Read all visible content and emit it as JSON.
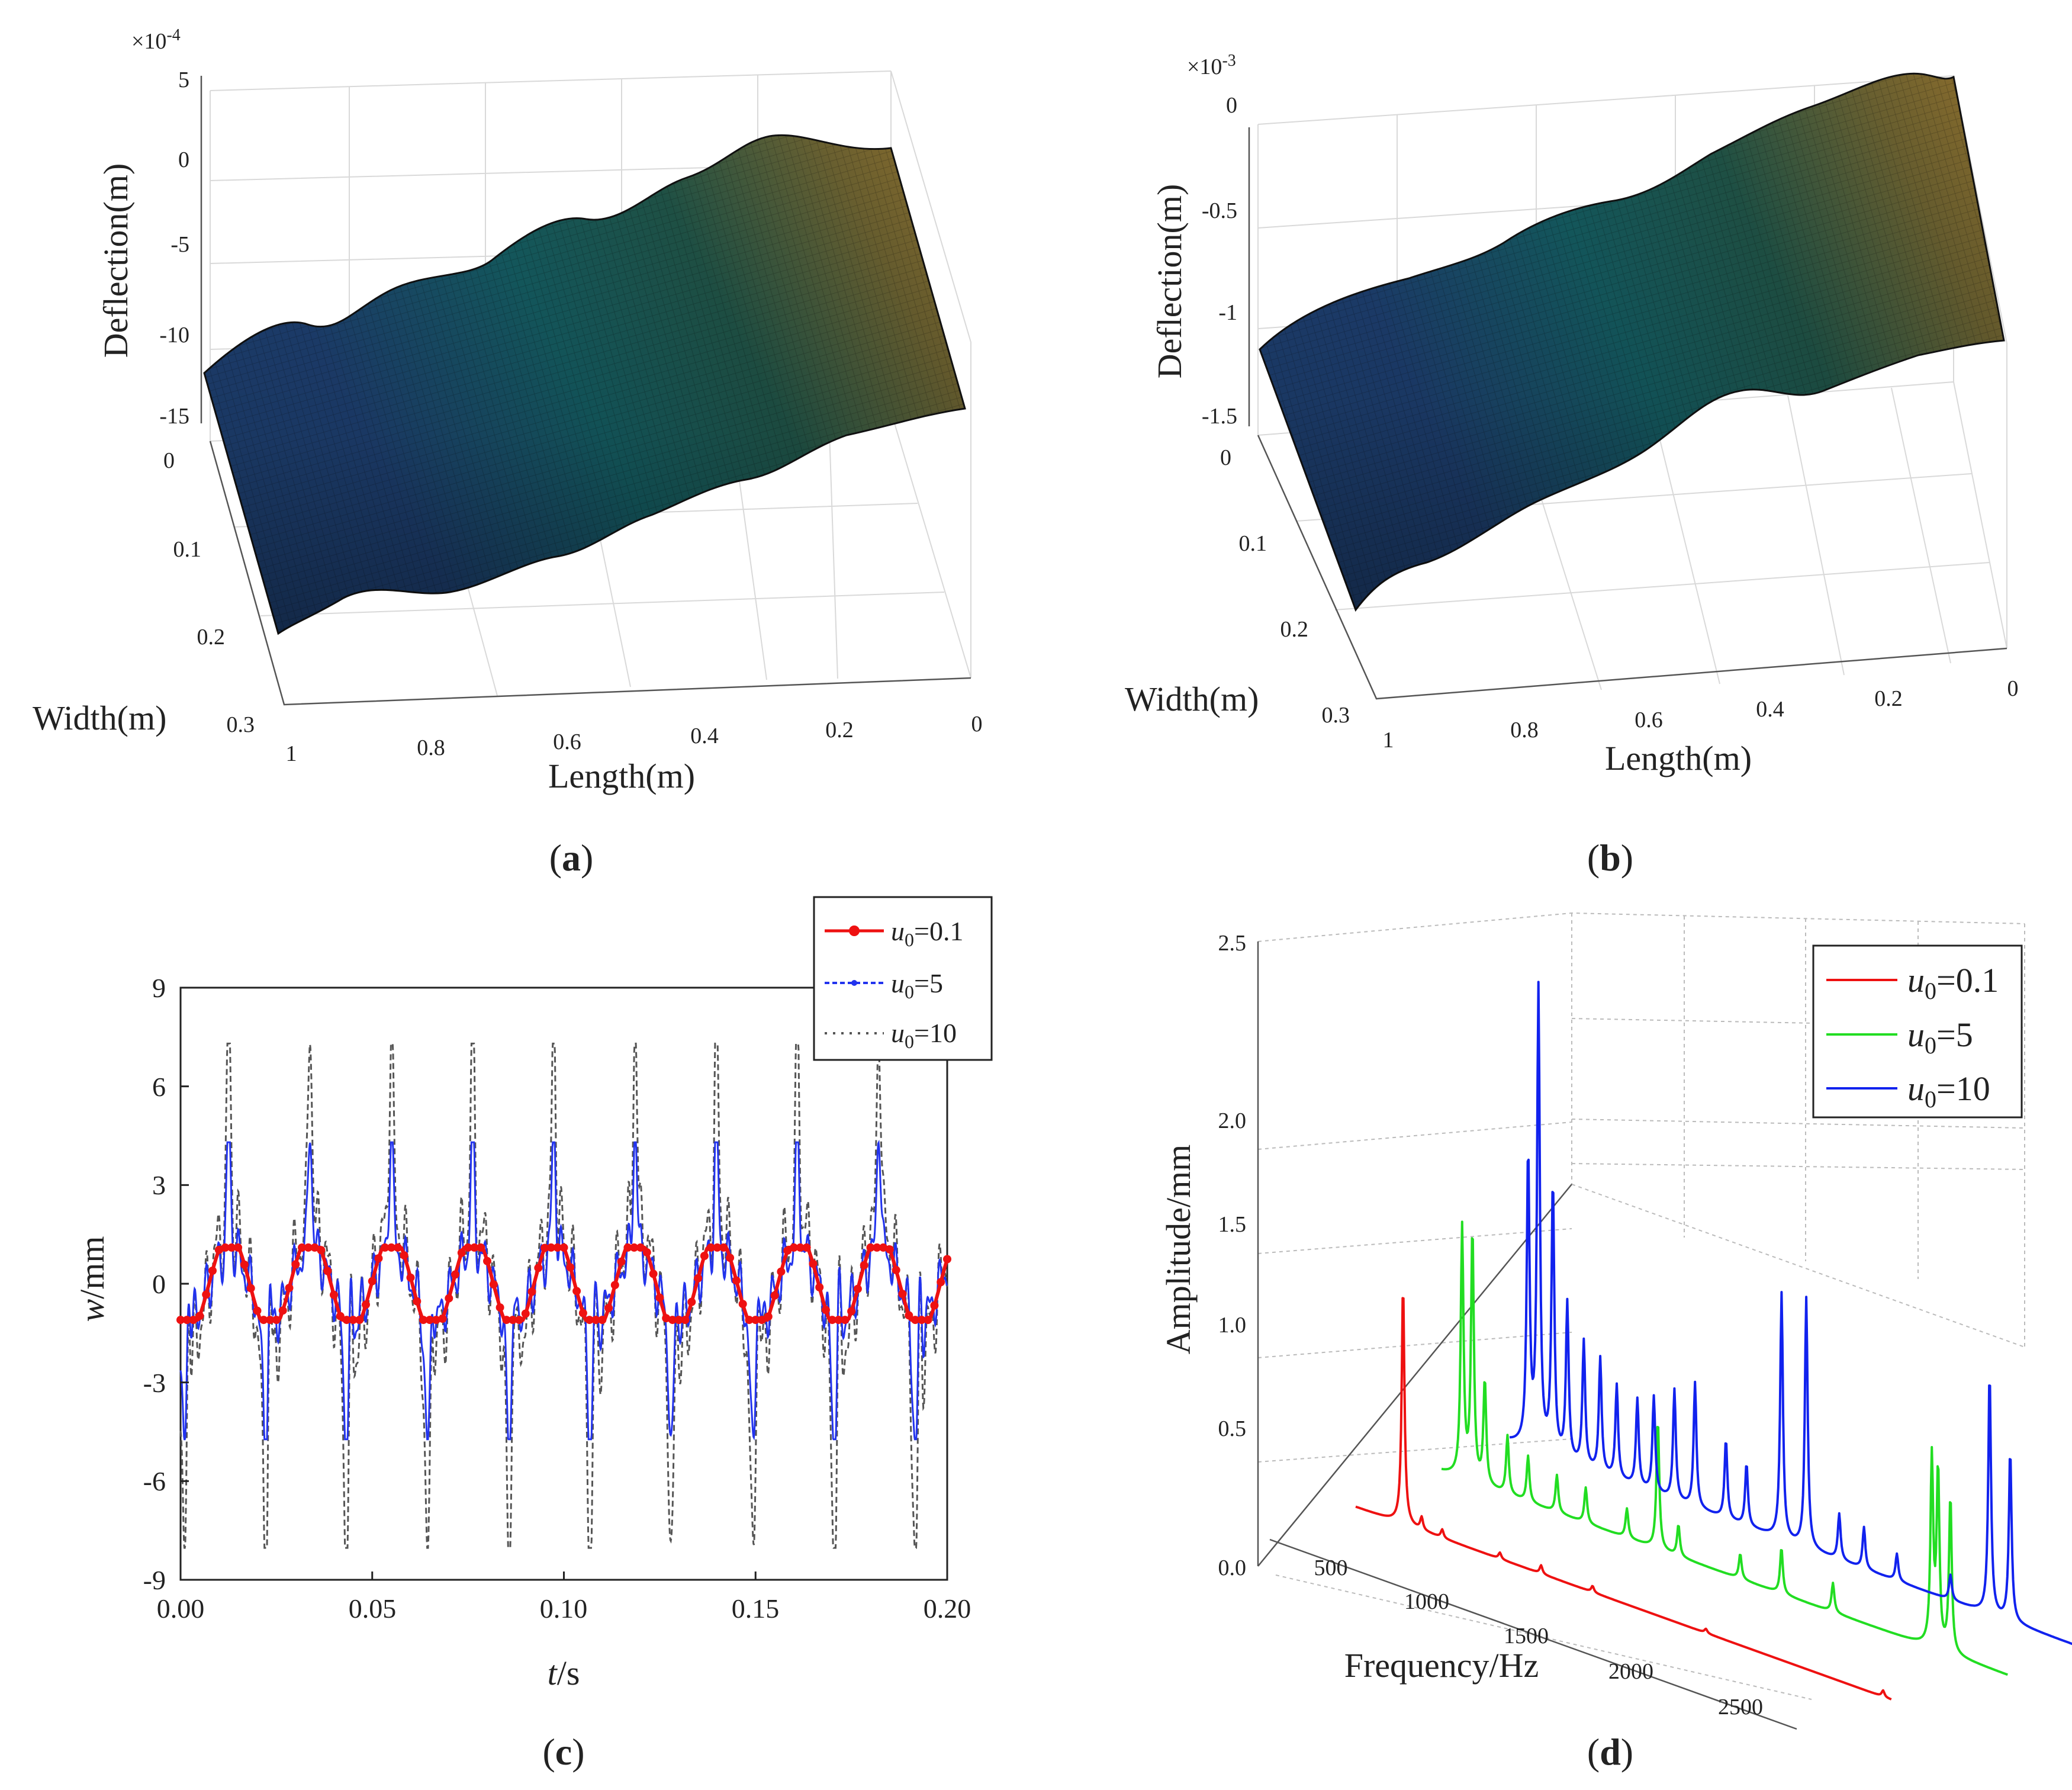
{
  "panels": {
    "a": {
      "label_open": "(",
      "label_letter": "a",
      "label_close": ")",
      "multiplier_prefix": "×10",
      "multiplier_exp": "-4",
      "zlabel": "Deflection(m)",
      "xlabel": "Length(m)",
      "ylabel": "Width(m)",
      "zticks": [
        "5",
        "0",
        "-5",
        "-10",
        "-15"
      ],
      "xticks": [
        "1",
        "0.8",
        "0.6",
        "0.4",
        "0.2",
        "0"
      ],
      "yticks": [
        "0",
        "0.1",
        "0.2",
        "0.3"
      ]
    },
    "b": {
      "label_open": "(",
      "label_letter": "b",
      "label_close": ")",
      "multiplier_prefix": "×10",
      "multiplier_exp": "-3",
      "zlabel": "Deflection(m)",
      "xlabel": "Length(m)",
      "ylabel": "Width(m)",
      "zticks": [
        "0",
        "-0.5",
        "-1",
        "-1.5"
      ],
      "xticks": [
        "1",
        "0.8",
        "0.6",
        "0.4",
        "0.2",
        "0"
      ],
      "yticks": [
        "0",
        "0.1",
        "0.2",
        "0.3"
      ]
    },
    "c": {
      "label_open": "(",
      "label_letter": "c",
      "label_close": ")"
    },
    "d": {
      "label_open": "(",
      "label_letter": "d",
      "label_close": ")"
    }
  },
  "chart_data": [
    {
      "id": "a",
      "type": "surface",
      "zlabel": "Deflection(m)",
      "xlabel": "Length(m)",
      "ylabel": "Width(m)",
      "zlim": [
        -15,
        5
      ],
      "z_scale": "×10^-4",
      "xlim": [
        0,
        1
      ],
      "ylim": [
        0,
        0.3
      ],
      "description": "Deflection surface rising from about -11e-4 at Length=1 to about 0 at Length=0 with sinusoidal ripples along length"
    },
    {
      "id": "b",
      "type": "surface",
      "zlabel": "Deflection(m)",
      "xlabel": "Length(m)",
      "ylabel": "Width(m)",
      "zlim": [
        -1.5,
        0
      ],
      "z_scale": "×10^-3",
      "xlim": [
        0,
        1
      ],
      "ylim": [
        0,
        0.3
      ]
    },
    {
      "id": "c",
      "type": "line",
      "xlabel_italic": "t",
      "xlabel_rest": "/s",
      "ylabel_italic": "w",
      "ylabel_rest": "/mm",
      "xlim": [
        0,
        0.2
      ],
      "ylim": [
        -9,
        9
      ],
      "xticks": [
        "0.00",
        "0.05",
        "0.10",
        "0.15",
        "0.20"
      ],
      "yticks": [
        "9",
        "6",
        "3",
        "0",
        "-3",
        "-6",
        "-9"
      ],
      "period_s": 0.0212,
      "series": [
        {
          "name": "u0=0.1",
          "sym": "u",
          "sub": "0",
          "val": "=0.1",
          "color": "#ee1111",
          "amplitude": 1.1,
          "range": [
            -1.1,
            1.1
          ]
        },
        {
          "name": "u0=5",
          "sym": "u",
          "sub": "0",
          "val": "=5",
          "color": "#2233ee",
          "amplitude": 4.3,
          "range": [
            -4.5,
            4.3
          ]
        },
        {
          "name": "u0=10",
          "sym": "u",
          "sub": "0",
          "val": "=10",
          "color": "#555555",
          "amplitude": 7.3,
          "range": [
            -8.1,
            7.3
          ]
        }
      ]
    },
    {
      "id": "d",
      "type": "line3d",
      "xlabel": "Frequency/Hz",
      "ylabel": "Amplitude/mm",
      "zlim": [
        0,
        2.5
      ],
      "zticks": [
        "0.0",
        "0.5",
        "1.0",
        "1.5",
        "2.0",
        "2.5"
      ],
      "xticks": [
        "500",
        "1000",
        "1500",
        "2000",
        "2500"
      ],
      "xlim": [
        250,
        2750
      ],
      "series": [
        {
          "name": "u0=0.1",
          "sym": "u",
          "sub": "0",
          "val": "=0.1",
          "color": "#ee1111",
          "peaks": [
            [
              230,
              1.15
            ],
            [
              320,
              0.06
            ],
            [
              420,
              0.04
            ],
            [
              700,
              0.03
            ],
            [
              900,
              0.04
            ],
            [
              1150,
              0.03
            ],
            [
              1700,
              0.02
            ],
            [
              2560,
              0.03
            ]
          ]
        },
        {
          "name": "u0=5",
          "sym": "u",
          "sub": "0",
          "val": "=5",
          "color": "#22dd22",
          "peaks": [
            [
              100,
              1.2
            ],
            [
              150,
              1.2
            ],
            [
              210,
              0.5
            ],
            [
              320,
              0.28
            ],
            [
              420,
              0.22
            ],
            [
              560,
              0.18
            ],
            [
              700,
              0.17
            ],
            [
              900,
              0.14
            ],
            [
              1050,
              0.62
            ],
            [
              1150,
              0.15
            ],
            [
              1450,
              0.12
            ],
            [
              1650,
              0.22
            ],
            [
              1900,
              0.14
            ],
            [
              2380,
              0.9
            ],
            [
              2410,
              0.85
            ],
            [
              2470,
              0.75
            ]
          ]
        },
        {
          "name": "u0=10",
          "sym": "u",
          "sub": "0",
          "val": "=10",
          "color": "#1122ee",
          "peaks": [
            [
              90,
              1.4
            ],
            [
              140,
              2.2
            ],
            [
              210,
              1.3
            ],
            [
              280,
              0.75
            ],
            [
              360,
              0.6
            ],
            [
              440,
              0.55
            ],
            [
              520,
              0.45
            ],
            [
              620,
              0.42
            ],
            [
              700,
              0.46
            ],
            [
              800,
              0.53
            ],
            [
              900,
              0.6
            ],
            [
              1050,
              0.38
            ],
            [
              1150,
              0.3
            ],
            [
              1320,
              1.18
            ],
            [
              1440,
              1.2
            ],
            [
              1600,
              0.22
            ],
            [
              1720,
              0.2
            ],
            [
              1880,
              0.13
            ],
            [
              2140,
              0.12
            ],
            [
              2330,
              1.16
            ],
            [
              2430,
              0.82
            ]
          ]
        }
      ]
    }
  ]
}
